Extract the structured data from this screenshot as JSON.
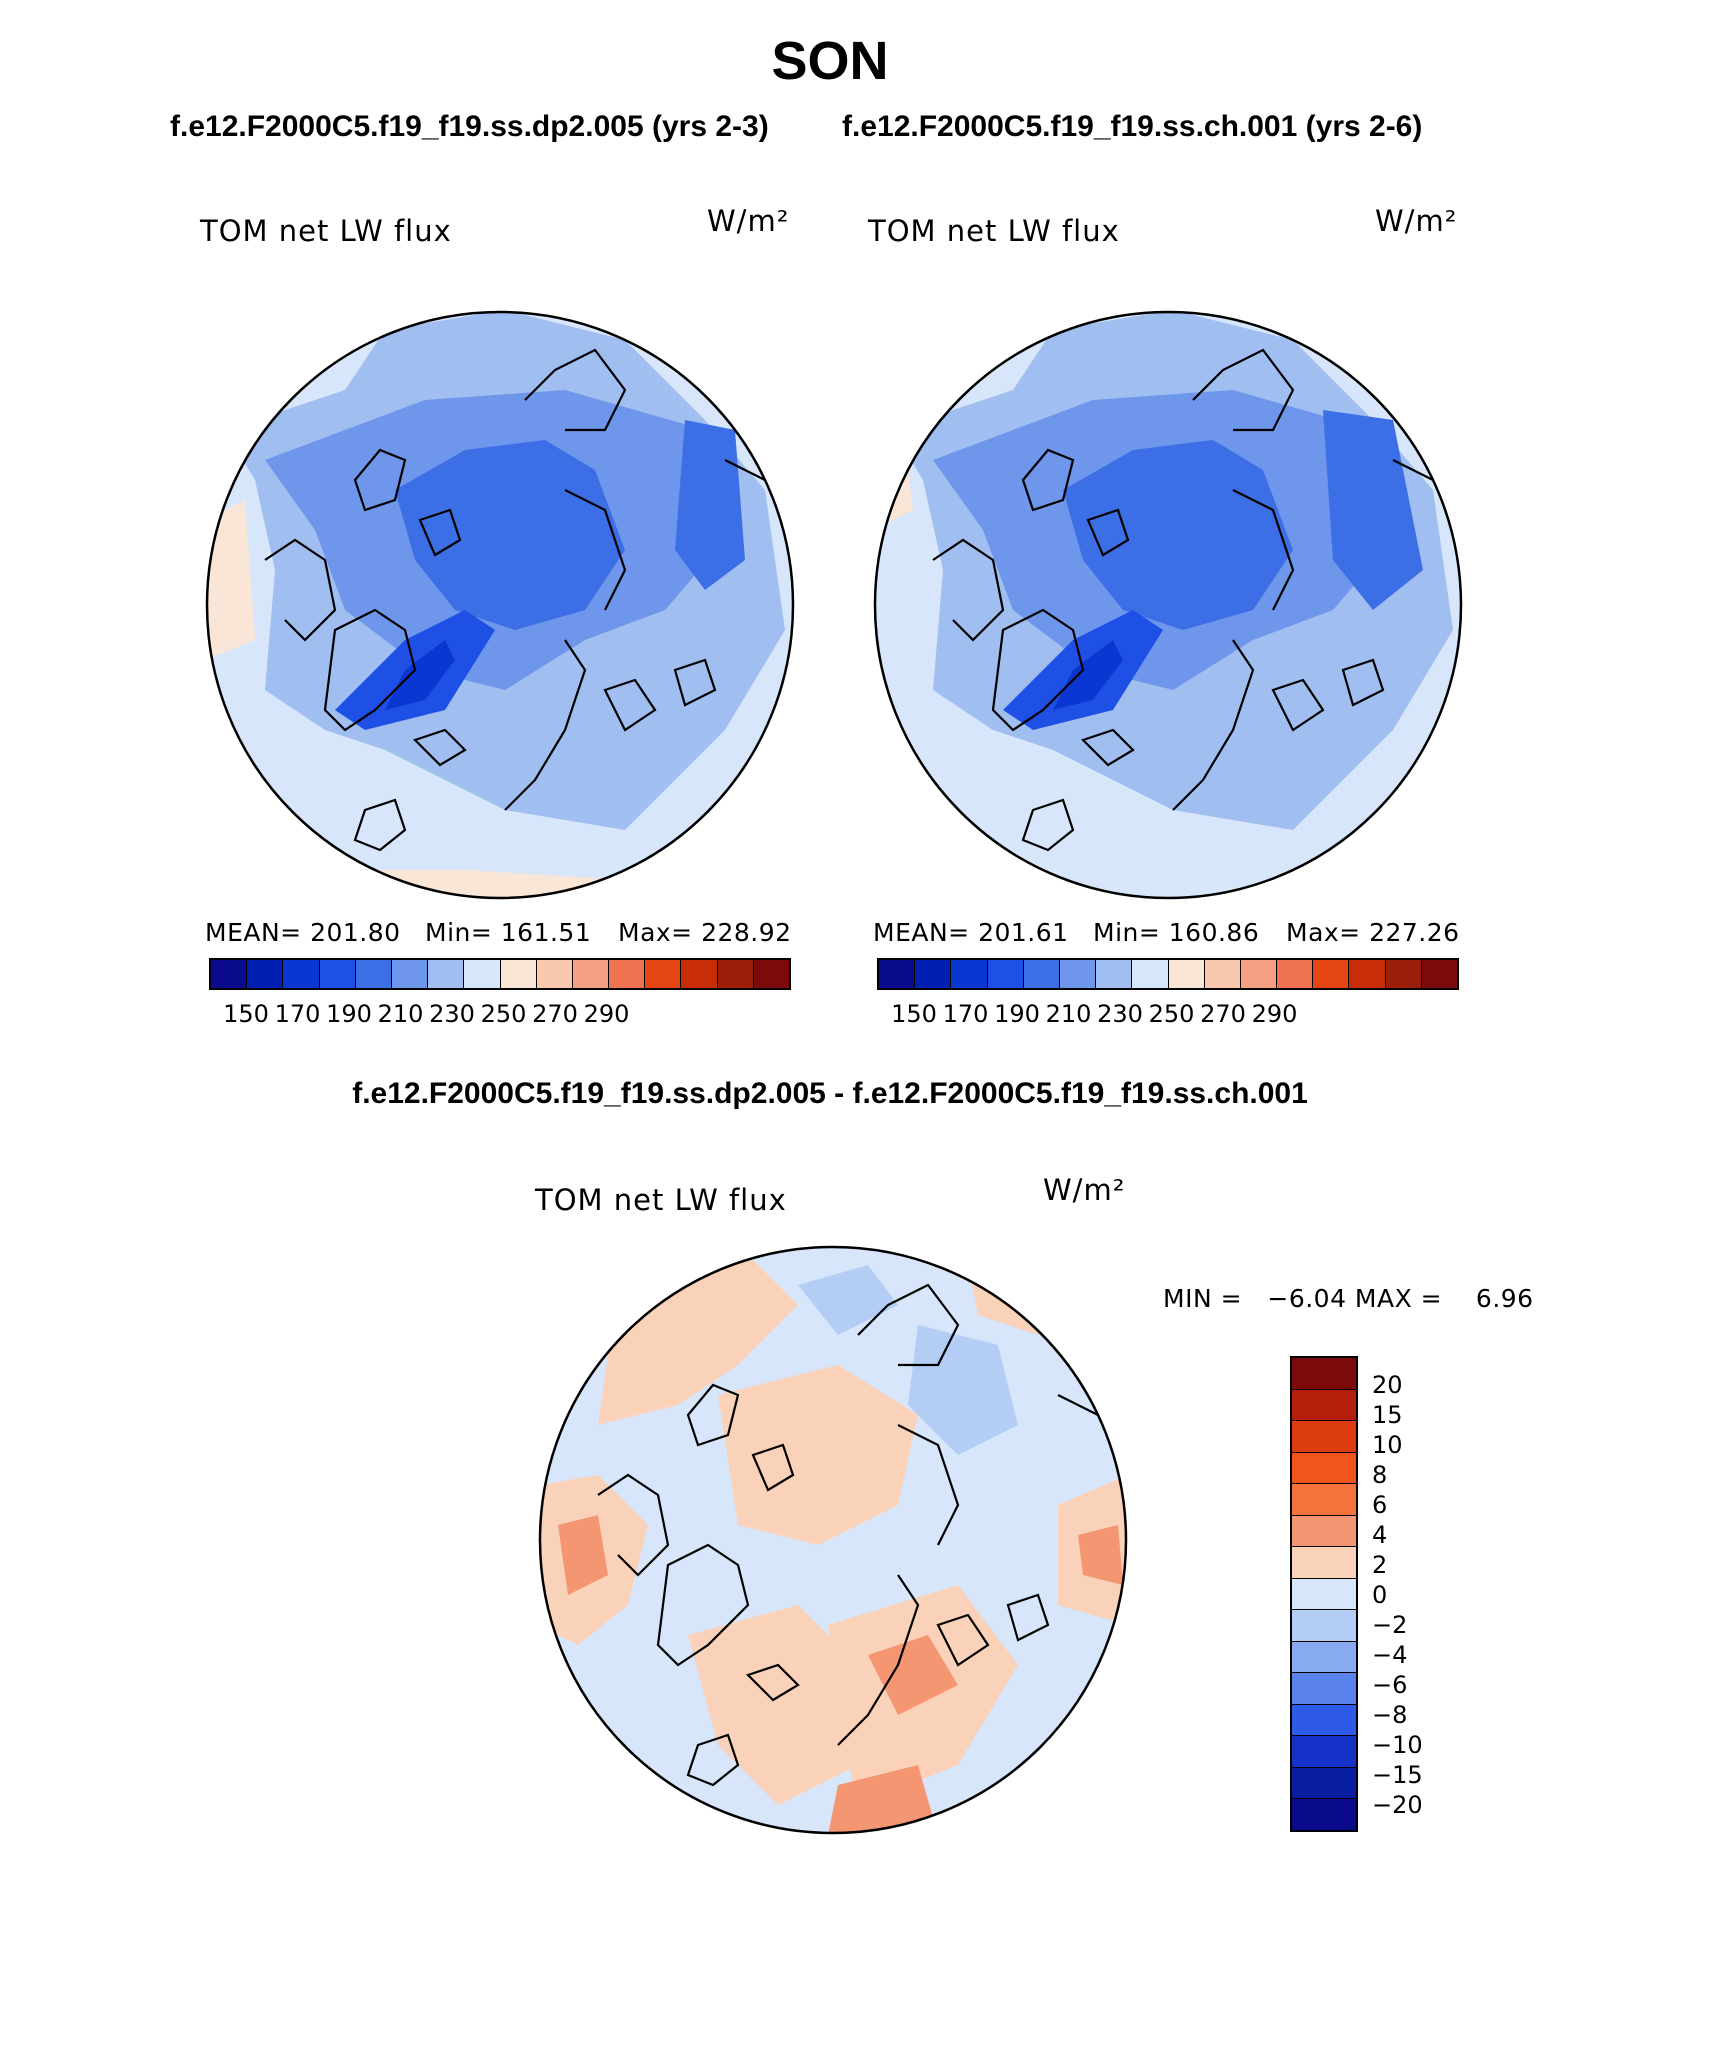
{
  "title": "SON",
  "case1_title": "f.e12.F2000C5.f19_f19.ss.dp2.005 (yrs 2-3)",
  "case2_title": "f.e12.F2000C5.f19_f19.ss.ch.001 (yrs 2-6)",
  "diff_title": "f.e12.F2000C5.f19_f19.ss.dp2.005 - f.e12.F2000C5.f19_f19.ss.ch.001",
  "variable_label": "TOM net LW flux",
  "unit_label": "W/m²",
  "panel1": {
    "mean": "MEAN= 201.80",
    "min": "Min= 161.51",
    "max": "Max= 228.92"
  },
  "panel2": {
    "mean": "MEAN= 201.61",
    "min": "Min= 160.86",
    "max": "Max= 227.26"
  },
  "diff_panel": {
    "min_max": "MIN =   −6.04 MAX =    6.96"
  },
  "abs_colorbar": {
    "colors": [
      "#0a0a8c",
      "#0020b4",
      "#0a37d2",
      "#1e50e6",
      "#3c6ee6",
      "#6e96eb",
      "#a0bef0",
      "#d7e6fa",
      "#fae6d7",
      "#fac8af",
      "#f5a082",
      "#f07350",
      "#e64614",
      "#c82d0a",
      "#9b1e0a",
      "#7d0a0a"
    ],
    "ticks": [
      "150",
      "170",
      "190",
      "210",
      "230",
      "250",
      "270",
      "290"
    ]
  },
  "diff_colorbar": {
    "colors": [
      "#7d0a0a",
      "#b41e0a",
      "#dc3c0f",
      "#f0551e",
      "#f5733c",
      "#f59673",
      "#fad2b9",
      "#d7e6fa",
      "#b4cdf5",
      "#87aaf0",
      "#5a82eb",
      "#2d5ae6",
      "#1432c8",
      "#0a1ea0",
      "#0a0a8c"
    ],
    "ticks": [
      "20",
      "15",
      "10",
      "8",
      "6",
      "4",
      "2",
      "0",
      "−2",
      "−4",
      "−6",
      "−8",
      "−10",
      "−15",
      "−20"
    ]
  }
}
